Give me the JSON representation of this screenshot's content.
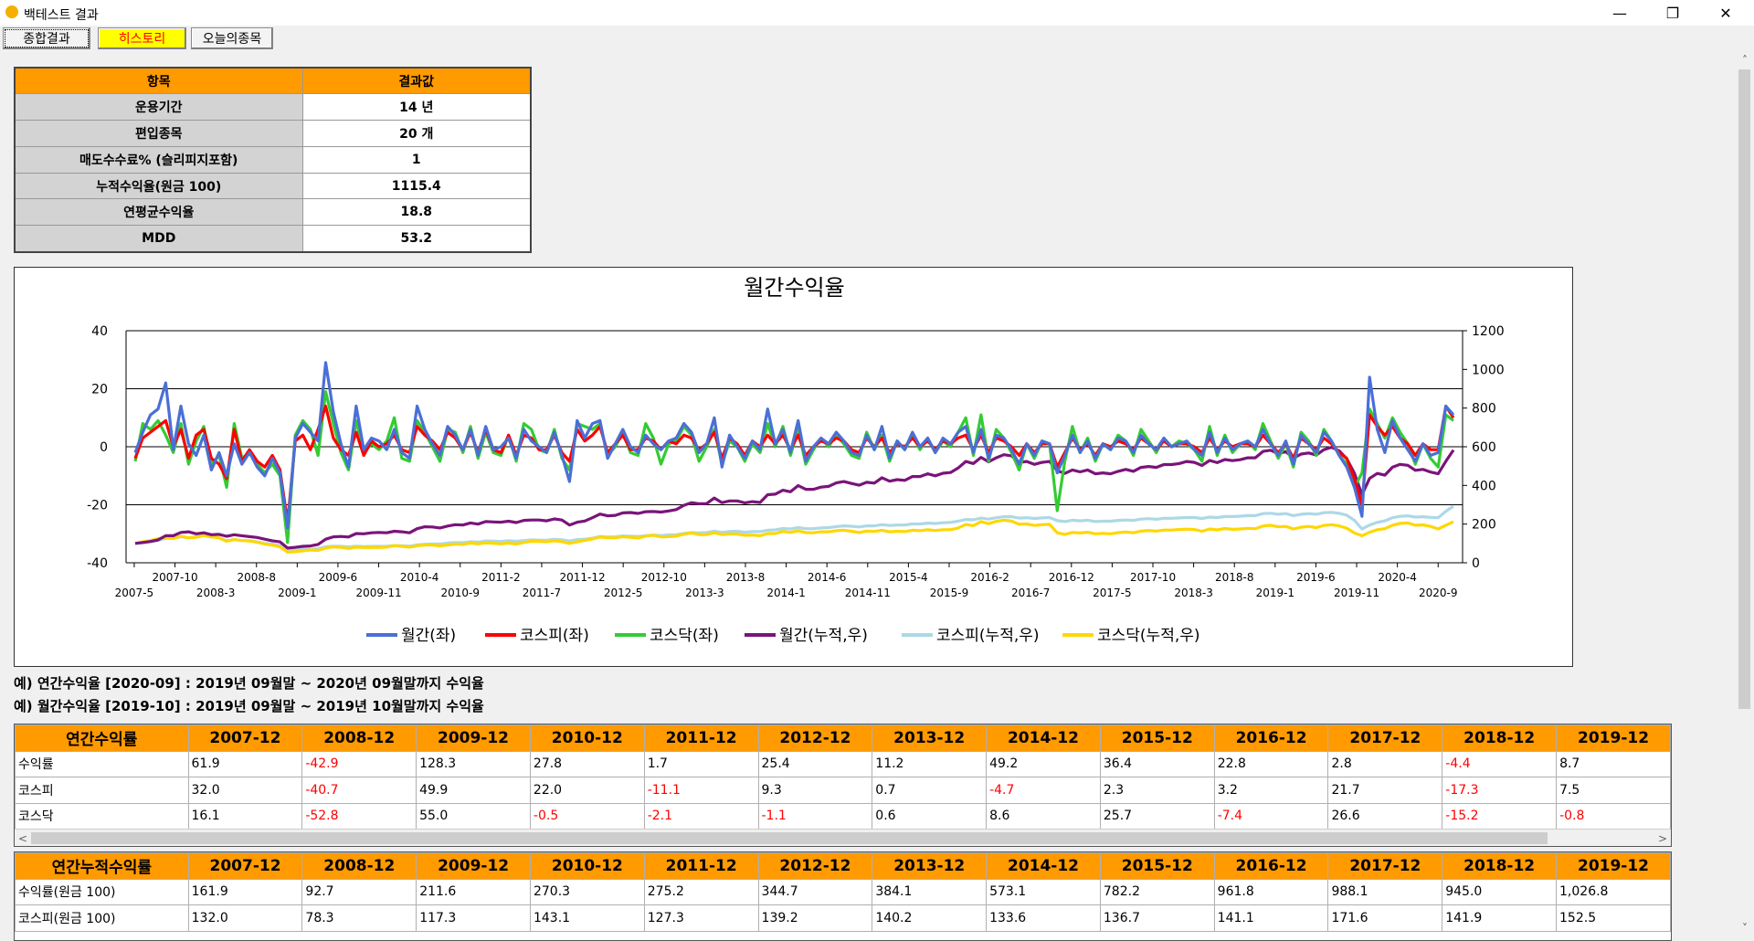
{
  "window": {
    "title": "백테스트 결과",
    "minimize": "—",
    "maximize": "❐",
    "close": "✕"
  },
  "tabs": [
    {
      "label": "종합결과",
      "active": true
    },
    {
      "label": "히스토리",
      "highlight": true
    },
    {
      "label": "오늘의종목"
    }
  ],
  "summary": {
    "header": [
      "항목",
      "결과값"
    ],
    "rows": [
      [
        "운용기간",
        "14 년"
      ],
      [
        "편입종목",
        "20 개"
      ],
      [
        "매도수수료% (슬리피지포함)",
        "1"
      ],
      [
        "누적수익율(원금 100)",
        "1115.4"
      ],
      [
        "연평균수익율",
        "18.8"
      ],
      [
        "MDD",
        "53.2"
      ]
    ]
  },
  "chart_data": {
    "type": "line",
    "title": "월간수익율",
    "x_ticks_upper": [
      "2007-10",
      "2008-8",
      "2009-6",
      "2010-4",
      "2011-2",
      "2011-12",
      "2012-10",
      "2013-8",
      "2014-6",
      "2015-4",
      "2016-2",
      "2016-12",
      "2017-10",
      "2018-8",
      "2019-6",
      "2020-4"
    ],
    "x_ticks_lower": [
      "2007-5",
      "2008-3",
      "2009-1",
      "2009-11",
      "2010-9",
      "2011-7",
      "2012-5",
      "2013-3",
      "2014-1",
      "2014-11",
      "2015-9",
      "2016-7",
      "2017-5",
      "2018-3",
      "2019-1",
      "2019-11",
      "2020-9"
    ],
    "x_range": [
      "2007-4",
      "2020-12"
    ],
    "y_left": {
      "min": -40,
      "max": 40,
      "ticks": [
        40,
        20,
        0,
        -20,
        -40
      ]
    },
    "y_right": {
      "min": 0,
      "max": 1200,
      "ticks": [
        1200,
        1000,
        800,
        600,
        400,
        200,
        0
      ]
    },
    "grid": "horizontal",
    "legend_position": "bottom",
    "series": [
      {
        "name": "월간(좌)",
        "axis": "left",
        "color": "#4a6fd6",
        "values": [
          -2,
          5,
          11,
          13,
          22,
          -1,
          14,
          1,
          -3,
          4,
          -8,
          -2,
          -10,
          1,
          -6,
          -2,
          -7,
          -10,
          -4,
          -9,
          -28,
          3,
          8,
          5,
          2,
          29,
          12,
          1,
          -7,
          14,
          -1,
          3,
          2,
          -1,
          6,
          -2,
          -4,
          14,
          6,
          1,
          -3,
          7,
          4,
          -1,
          6,
          -3,
          7,
          -1,
          0,
          3,
          -4,
          6,
          2,
          0,
          -2,
          5,
          -3,
          -12,
          9,
          3,
          8,
          9,
          -4,
          1,
          6,
          0,
          -2,
          4,
          1,
          -1,
          2,
          3,
          8,
          5,
          -2,
          1,
          10,
          -7,
          4,
          0,
          -4,
          2,
          -1,
          13,
          1,
          6,
          -2,
          9,
          -5,
          0,
          3,
          1,
          5,
          2,
          -2,
          -3,
          4,
          -1,
          7,
          -4,
          2,
          -1,
          5,
          0,
          3,
          -2,
          3,
          1,
          5,
          7,
          -2,
          6,
          -4,
          4,
          3,
          -1,
          -6,
          1,
          -3,
          2,
          1,
          -9,
          -3,
          4,
          -2,
          2,
          -4,
          1,
          -1,
          3,
          2,
          -2,
          4,
          1,
          -1,
          3,
          0,
          1,
          2,
          -1,
          -3,
          5,
          -2,
          3,
          -1,
          1,
          2,
          0,
          6,
          1,
          -3,
          2,
          -6,
          4,
          1,
          -2,
          5,
          2,
          -3,
          -7,
          -14,
          -24,
          24,
          6,
          -2,
          9,
          3,
          -1,
          -5,
          1,
          -3,
          -2,
          14,
          11
        ]
      },
      {
        "name": "코스피(좌)",
        "axis": "left",
        "color": "#ff0000",
        "values": [
          -4,
          3,
          5,
          7,
          9,
          0,
          6,
          -4,
          4,
          6,
          -4,
          -6,
          -11,
          6,
          -5,
          -1,
          -5,
          -7,
          -3,
          -8,
          -26,
          2,
          4,
          -1,
          6,
          14,
          3,
          -1,
          -3,
          5,
          -3,
          2,
          0,
          1,
          4,
          -1,
          -2,
          7,
          4,
          2,
          -1,
          5,
          3,
          -1,
          5,
          -2,
          6,
          -1,
          -2,
          4,
          -3,
          4,
          3,
          -1,
          -1,
          4,
          -2,
          -5,
          6,
          2,
          4,
          7,
          -2,
          1,
          4,
          -1,
          -1,
          3,
          2,
          -1,
          2,
          1,
          4,
          3,
          -1,
          1,
          5,
          -4,
          3,
          1,
          -3,
          2,
          0,
          4,
          1,
          4,
          -1,
          4,
          -3,
          0,
          2,
          1,
          3,
          2,
          -1,
          -2,
          3,
          0,
          3,
          -2,
          1,
          0,
          3,
          0,
          2,
          -1,
          2,
          1,
          3,
          4,
          -1,
          4,
          -2,
          3,
          2,
          0,
          -3,
          1,
          -2,
          1,
          1,
          -7,
          -2,
          3,
          -1,
          1,
          -3,
          1,
          0,
          2,
          1,
          -1,
          3,
          1,
          -1,
          2,
          0,
          1,
          1,
          0,
          -2,
          3,
          -1,
          2,
          0,
          1,
          1,
          0,
          4,
          1,
          -2,
          1,
          -4,
          3,
          1,
          -1,
          3,
          1,
          -2,
          -4,
          -11,
          -20,
          11,
          7,
          4,
          7,
          3,
          1,
          -3,
          1,
          -1,
          -1,
          14,
          10
        ]
      },
      {
        "name": "코스닥(좌)",
        "axis": "left",
        "color": "#33cc33",
        "values": [
          -5,
          8,
          6,
          9,
          4,
          -2,
          8,
          -6,
          2,
          7,
          -6,
          -3,
          -14,
          8,
          -4,
          -2,
          -6,
          -9,
          -6,
          -10,
          -33,
          4,
          9,
          6,
          -3,
          19,
          8,
          -2,
          -8,
          9,
          -2,
          1,
          -1,
          2,
          10,
          -4,
          -5,
          9,
          5,
          0,
          -5,
          6,
          5,
          -2,
          7,
          -4,
          5,
          -2,
          -3,
          4,
          -5,
          8,
          6,
          -1,
          -2,
          6,
          -4,
          -8,
          8,
          7,
          6,
          8,
          -3,
          0,
          5,
          -2,
          -3,
          8,
          3,
          -6,
          1,
          2,
          7,
          4,
          -5,
          0,
          6,
          -6,
          2,
          0,
          -5,
          1,
          -2,
          8,
          0,
          7,
          -3,
          6,
          -6,
          -1,
          3,
          0,
          4,
          1,
          -3,
          -4,
          5,
          -1,
          4,
          -5,
          2,
          -1,
          4,
          -1,
          3,
          -2,
          2,
          0,
          5,
          10,
          -3,
          11,
          -5,
          6,
          3,
          -2,
          -8,
          1,
          -4,
          2,
          1,
          -22,
          -5,
          7,
          -2,
          3,
          -5,
          1,
          -1,
          4,
          2,
          -3,
          6,
          2,
          -2,
          3,
          0,
          2,
          1,
          -1,
          -5,
          7,
          -3,
          4,
          -2,
          1,
          2,
          -1,
          8,
          2,
          -4,
          1,
          -7,
          5,
          2,
          -3,
          6,
          2,
          -3,
          -6,
          -14,
          -9,
          13,
          8,
          3,
          10,
          5,
          1,
          -6,
          1,
          -4,
          -7,
          11,
          9
        ]
      },
      {
        "name": "월간(누적,우)",
        "axis": "right",
        "color": "#7a147a",
        "values": [
          100,
          105,
          110,
          118,
          140,
          140,
          157,
          160,
          150,
          155,
          145,
          147,
          137,
          145,
          140,
          135,
          131,
          122,
          114,
          108,
          76,
          80,
          85,
          87,
          95,
          122,
          134,
          136,
          133,
          151,
          150,
          155,
          157,
          155,
          163,
          160,
          155,
          176,
          186,
          185,
          180,
          190,
          197,
          195,
          206,
          200,
          213,
          211,
          210,
          215,
          208,
          219,
          221,
          221,
          217,
          227,
          221,
          195,
          210,
          216,
          233,
          252,
          243,
          245,
          258,
          260,
          255,
          264,
          265,
          262,
          268,
          275,
          297,
          311,
          305,
          306,
          335,
          311,
          320,
          320,
          310,
          316,
          312,
          352,
          355,
          375,
          367,
          399,
          380,
          380,
          391,
          395,
          413,
          420,
          410,
          401,
          416,
          412,
          440,
          422,
          430,
          426,
          446,
          446,
          460,
          450,
          463,
          467,
          490,
          524,
          513,
          545,
          522,
          543,
          559,
          553,
          519,
          524,
          509,
          519,
          524,
          476,
          462,
          480,
          470,
          480,
          460,
          465,
          460,
          473,
          483,
          473,
          493,
          498,
          493,
          508,
          508,
          513,
          524,
          519,
          503,
          529,
          518,
          534,
          528,
          533,
          543,
          543,
          576,
          582,
          564,
          575,
          541,
          562,
          568,
          557,
          585,
          597,
          579,
          538,
          463,
          352,
          436,
          462,
          453,
          494,
          509,
          504,
          478,
          483,
          469,
          460,
          525,
          583
        ]
      },
      {
        "name": "코스피(누적,우)",
        "axis": "right",
        "color": "#add8e6",
        "values": [
          100,
          103,
          108,
          116,
          126,
          126,
          134,
          129,
          134,
          142,
          136,
          128,
          114,
          121,
          115,
          114,
          108,
          100,
          97,
          89,
          66,
          67,
          70,
          69,
          73,
          83,
          86,
          85,
          82,
          86,
          83,
          85,
          85,
          86,
          89,
          88,
          86,
          92,
          96,
          98,
          97,
          102,
          105,
          104,
          109,
          107,
          113,
          112,
          110,
          114,
          111,
          115,
          118,
          117,
          116,
          121,
          119,
          113,
          120,
          122,
          127,
          136,
          133,
          134,
          139,
          138,
          136,
          140,
          143,
          141,
          144,
          145,
          151,
          156,
          154,
          156,
          164,
          157,
          162,
          163,
          158,
          161,
          161,
          168,
          170,
          177,
          175,
          182,
          176,
          176,
          180,
          182,
          187,
          191,
          189,
          185,
          191,
          191,
          197,
          193,
          195,
          195,
          201,
          201,
          205,
          203,
          207,
          209,
          215,
          224,
          222,
          231,
          226,
          233,
          238,
          238,
          231,
          233,
          229,
          232,
          234,
          218,
          213,
          220,
          217,
          220,
          213,
          215,
          215,
          219,
          221,
          219,
          226,
          228,
          225,
          230,
          230,
          232,
          234,
          234,
          229,
          236,
          234,
          239,
          239,
          241,
          244,
          244,
          254,
          256,
          251,
          254,
          244,
          251,
          254,
          251,
          259,
          261,
          256,
          246,
          219,
          175,
          195,
          209,
          217,
          233,
          240,
          243,
          236,
          238,
          235,
          233,
          266,
          293
        ]
      },
      {
        "name": "코스닥(누적,우)",
        "axis": "right",
        "color": "#ffd700",
        "values": [
          100,
          108,
          115,
          125,
          130,
          127,
          137,
          129,
          132,
          141,
          133,
          129,
          111,
          120,
          115,
          113,
          106,
          97,
          91,
          82,
          55,
          57,
          62,
          66,
          64,
          76,
          82,
          80,
          74,
          81,
          79,
          80,
          79,
          81,
          89,
          85,
          81,
          88,
          92,
          92,
          87,
          92,
          97,
          95,
          102,
          98,
          103,
          101,
          98,
          102,
          97,
          105,
          111,
          110,
          108,
          114,
          109,
          100,
          108,
          116,
          123,
          133,
          129,
          129,
          135,
          132,
          128,
          138,
          142,
          134,
          135,
          138,
          148,
          154,
          146,
          146,
          155,
          146,
          149,
          149,
          142,
          143,
          140,
          151,
          151,
          162,
          157,
          166,
          156,
          155,
          160,
          160,
          166,
          168,
          163,
          156,
          164,
          162,
          168,
          160,
          163,
          161,
          168,
          166,
          171,
          167,
          171,
          171,
          180,
          198,
          192,
          213,
          202,
          214,
          220,
          216,
          199,
          201,
          193,
          197,
          199,
          155,
          147,
          157,
          154,
          158,
          150,
          152,
          150,
          156,
          159,
          155,
          164,
          167,
          164,
          169,
          169,
          172,
          174,
          172,
          163,
          175,
          170,
          177,
          173,
          175,
          178,
          176,
          190,
          194,
          186,
          188,
          175,
          184,
          188,
          182,
          193,
          197,
          191,
          179,
          154,
          140,
          158,
          171,
          176,
          194,
          204,
          206,
          194,
          196,
          188,
          175,
          194,
          212
        ]
      }
    ]
  },
  "notes": [
    "예) 연간수익율 [2020-09] : 2019년 09월말 ~ 2020년 09월말까지 수익율",
    "예) 월간수익율 [2019-10] : 2019년 09월말 ~ 2019년 10월말까지 수익율"
  ],
  "annual": {
    "header": [
      "연간수익률",
      "2007-12",
      "2008-12",
      "2009-12",
      "2010-12",
      "2011-12",
      "2012-12",
      "2013-12",
      "2014-12",
      "2015-12",
      "2016-12",
      "2017-12",
      "2018-12",
      "2019-12"
    ],
    "rows": [
      [
        "수익률",
        "61.9",
        "-42.9",
        "128.3",
        "27.8",
        "1.7",
        "25.4",
        "11.2",
        "49.2",
        "36.4",
        "22.8",
        "2.8",
        "-4.4",
        "8.7"
      ],
      [
        "코스피",
        "32.0",
        "-40.7",
        "49.9",
        "22.0",
        "-11.1",
        "9.3",
        "0.7",
        "-4.7",
        "2.3",
        "3.2",
        "21.7",
        "-17.3",
        "7.5"
      ],
      [
        "코스닥",
        "16.1",
        "-52.8",
        "55.0",
        "-0.5",
        "-2.1",
        "-1.1",
        "0.6",
        "8.6",
        "25.7",
        "-7.4",
        "26.6",
        "-15.2",
        "-0.8"
      ]
    ]
  },
  "cumulative": {
    "header": [
      "연간누적수익률",
      "2007-12",
      "2008-12",
      "2009-12",
      "2010-12",
      "2011-12",
      "2012-12",
      "2013-12",
      "2014-12",
      "2015-12",
      "2016-12",
      "2017-12",
      "2018-12",
      "2019-12"
    ],
    "rows": [
      [
        "수익률(원금 100)",
        "161.9",
        "92.7",
        "211.6",
        "270.3",
        "275.2",
        "344.7",
        "384.1",
        "573.1",
        "782.2",
        "961.8",
        "988.1",
        "945.0",
        "1,026.8"
      ],
      [
        "코스피(원금 100)",
        "132.0",
        "78.3",
        "117.3",
        "143.1",
        "127.3",
        "139.2",
        "140.2",
        "133.6",
        "136.7",
        "141.1",
        "171.6",
        "141.9",
        "152.5"
      ]
    ]
  },
  "scroll": {
    "left_arrow": "<",
    "right_arrow": ">",
    "up_arrow": "˄",
    "down_arrow": "˅"
  },
  "colors": {
    "header_orange": "#ff9a00",
    "label_gray": "#d3d3d3",
    "negative": "#ff0000",
    "tab_highlight": "#ffff00"
  }
}
